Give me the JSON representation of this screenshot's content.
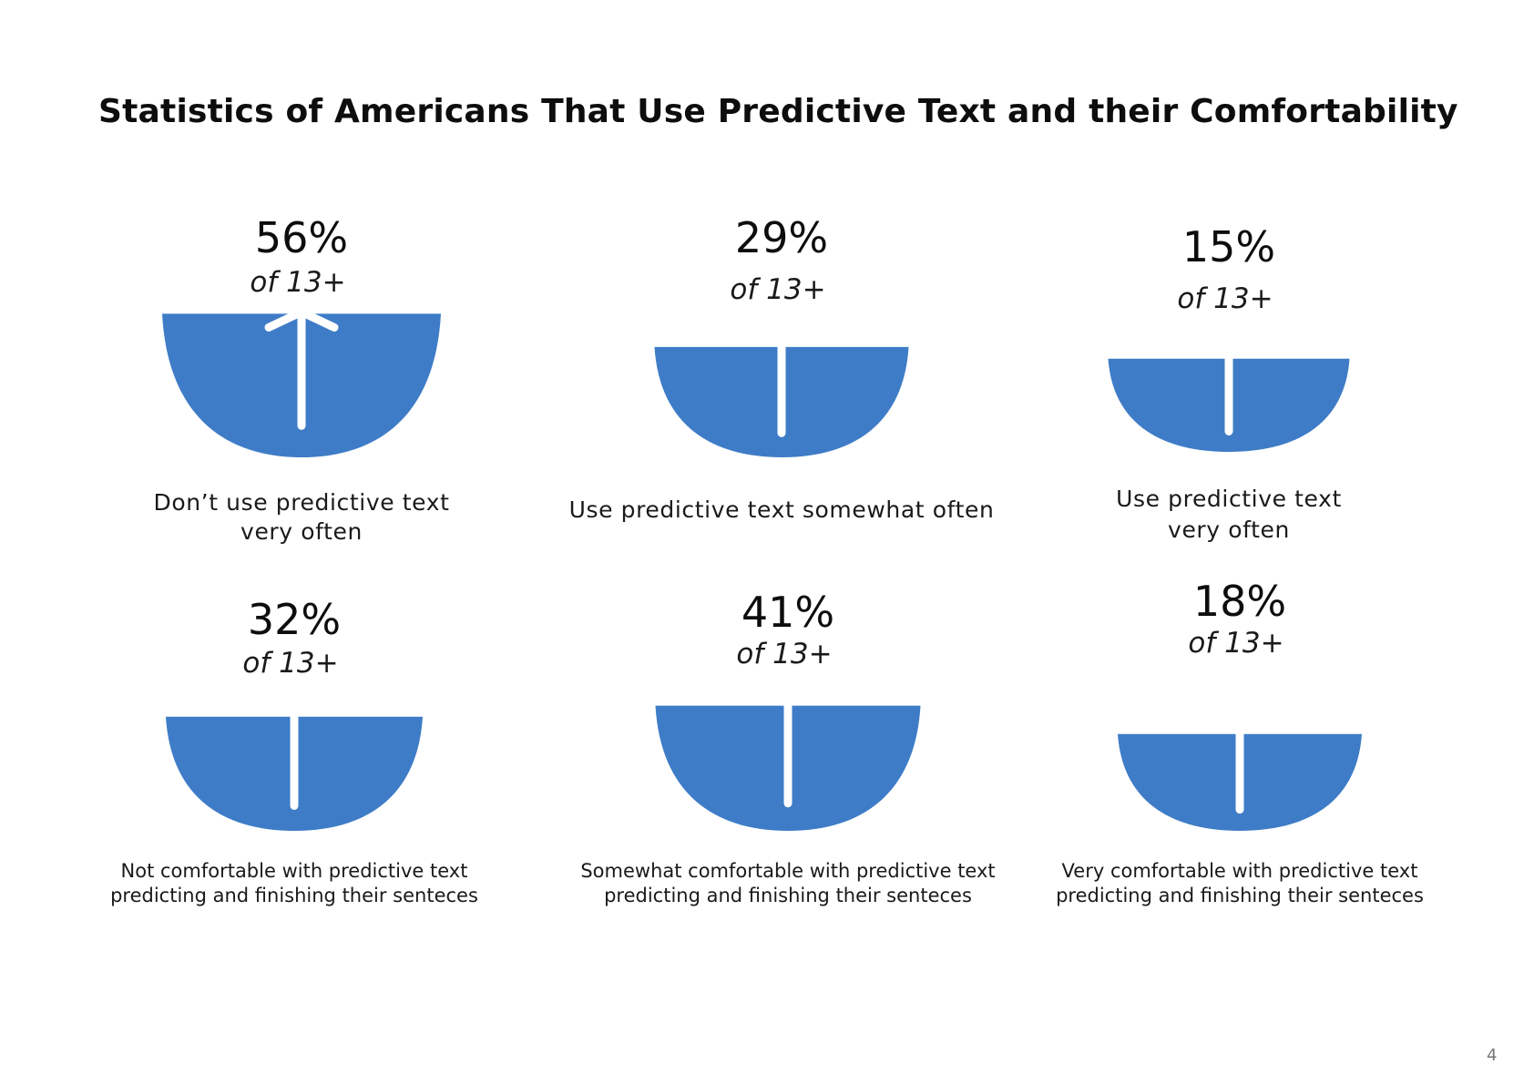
{
  "page": {
    "title": "Statistics of Americans That Use Predictive Text and their Comfortability",
    "page_number": "4"
  },
  "colors": {
    "bowl_fill": "#3e7cc7",
    "divider": "#ffffff"
  },
  "chart_data": {
    "type": "bar",
    "title": "Statistics of Americans That Use Predictive Text and their Comfortability",
    "groups": [
      {
        "name": "",
        "items": [
          {
            "value": 56,
            "value_label": "56%",
            "sub_label": "of 13+",
            "label_lines": [
              "Don’t use predictive text",
              "very often"
            ],
            "has_arrow": true
          },
          {
            "value": 29,
            "value_label": "29%",
            "sub_label": "of 13+",
            "label_lines": [
              "Use predictive text somewhat often"
            ],
            "has_arrow": false
          },
          {
            "value": 15,
            "value_label": "15%",
            "sub_label": "of 13+",
            "label_lines": [
              "Use predictive text",
              "very often"
            ],
            "has_arrow": false
          }
        ]
      },
      {
        "name": "",
        "items": [
          {
            "value": 32,
            "value_label": "32%",
            "sub_label": "of 13+",
            "label_lines": [
              "Not comfortable with predictive text",
              "predicting and finishing their senteces"
            ],
            "has_arrow": false
          },
          {
            "value": 41,
            "value_label": "41%",
            "sub_label": "of 13+",
            "label_lines": [
              "Somewhat comfortable with predictive text",
              "predicting and finishing their senteces"
            ],
            "has_arrow": false
          },
          {
            "value": 18,
            "value_label": "18%",
            "sub_label": "of 13+",
            "label_lines": [
              "Very comfortable with predictive text",
              "predicting and finishing their senteces"
            ],
            "has_arrow": false
          }
        ]
      }
    ]
  }
}
